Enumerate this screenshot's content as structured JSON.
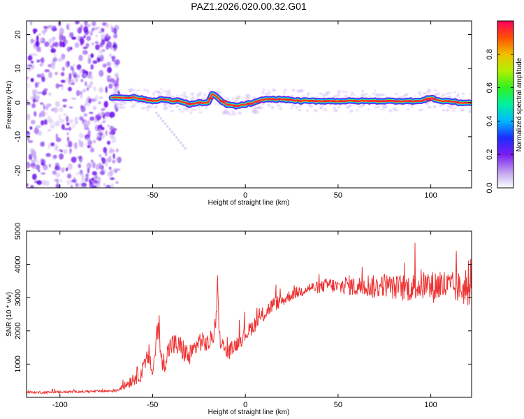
{
  "title": "PAZ1.2026.020.00.32.G01",
  "chart_data": [
    {
      "type": "heatmap",
      "title": "PAZ1.2026.020.00.32.G01",
      "xlabel": "Height of straight line (km)",
      "ylabel": "Frequency (Hz)",
      "xlim": [
        -118,
        122
      ],
      "ylim": [
        -25,
        24
      ],
      "xticks": [
        -100,
        -50,
        0,
        50,
        100
      ],
      "yticks": [
        -20,
        -10,
        0,
        10,
        20
      ],
      "grid": false,
      "description_note": "Doppler spectrogram: dominant spectral line near 0 Hz from about -70 km upward; noisy spread below about -70 km",
      "track_x": [
        -70,
        -60,
        -50,
        -45,
        -40,
        -35,
        -30,
        -25,
        -20,
        -18,
        -15,
        -12,
        -10,
        -5,
        0,
        5,
        10,
        20,
        30,
        40,
        50,
        60,
        70,
        80,
        90,
        95,
        100,
        105,
        110,
        115,
        122
      ],
      "track_freq": [
        1.5,
        1.5,
        0.5,
        1.0,
        0.5,
        0.5,
        -0.5,
        0.0,
        0.0,
        2.5,
        1.5,
        0.0,
        -0.5,
        -1.0,
        -0.5,
        0.0,
        1.0,
        1.0,
        0.5,
        0.5,
        0.5,
        0.5,
        0.5,
        0.5,
        0.5,
        0.5,
        1.5,
        0.5,
        0.5,
        0.0,
        0.0
      ],
      "colorbar": {
        "label": "Normalized spectral amplitude",
        "range": [
          0.0,
          1.0
        ],
        "ticks": [
          0.0,
          0.2,
          0.4,
          0.6,
          0.8
        ]
      }
    },
    {
      "type": "line",
      "xlabel": "Height of straight line (km)",
      "ylabel": "SNR (10 * v/v)",
      "xlim": [
        -118,
        122
      ],
      "ylim": [
        0,
        5000
      ],
      "xticks": [
        -100,
        -50,
        0,
        50,
        100
      ],
      "yticks": [
        1000,
        2000,
        3000,
        4000,
        5000
      ],
      "grid": false,
      "series": [
        {
          "name": "SNR",
          "color": "#ee3333",
          "x": [
            -118,
            -110,
            -100,
            -90,
            -80,
            -70,
            -65,
            -60,
            -55,
            -52,
            -50,
            -47,
            -45,
            -40,
            -35,
            -30,
            -25,
            -20,
            -16,
            -15,
            -14,
            -10,
            -5,
            0,
            5,
            10,
            15,
            20,
            25,
            30,
            35,
            40,
            45,
            50,
            55,
            60,
            65,
            70,
            75,
            80,
            85,
            90,
            95,
            100,
            105,
            110,
            115,
            120,
            122
          ],
          "values": [
            150,
            150,
            160,
            170,
            180,
            200,
            350,
            600,
            800,
            1300,
            700,
            2200,
            900,
            1600,
            1500,
            1200,
            1700,
            1600,
            2000,
            3500,
            1800,
            1300,
            1600,
            1900,
            2200,
            2500,
            2800,
            2900,
            3100,
            3200,
            3300,
            3300,
            3400,
            3300,
            3400,
            3300,
            3400,
            3300,
            3400,
            3300,
            3300,
            3300,
            3400,
            3300,
            3400,
            3300,
            3300,
            3200,
            3300
          ],
          "spread": [
            60,
            60,
            60,
            60,
            60,
            80,
            200,
            400,
            500,
            500,
            500,
            600,
            600,
            600,
            600,
            600,
            500,
            500,
            400,
            300,
            400,
            400,
            400,
            400,
            400,
            400,
            400,
            300,
            300,
            300,
            300,
            300,
            400,
            400,
            500,
            500,
            600,
            600,
            600,
            600,
            700,
            700,
            800,
            800,
            900,
            800,
            800,
            800,
            800
          ]
        }
      ]
    }
  ]
}
